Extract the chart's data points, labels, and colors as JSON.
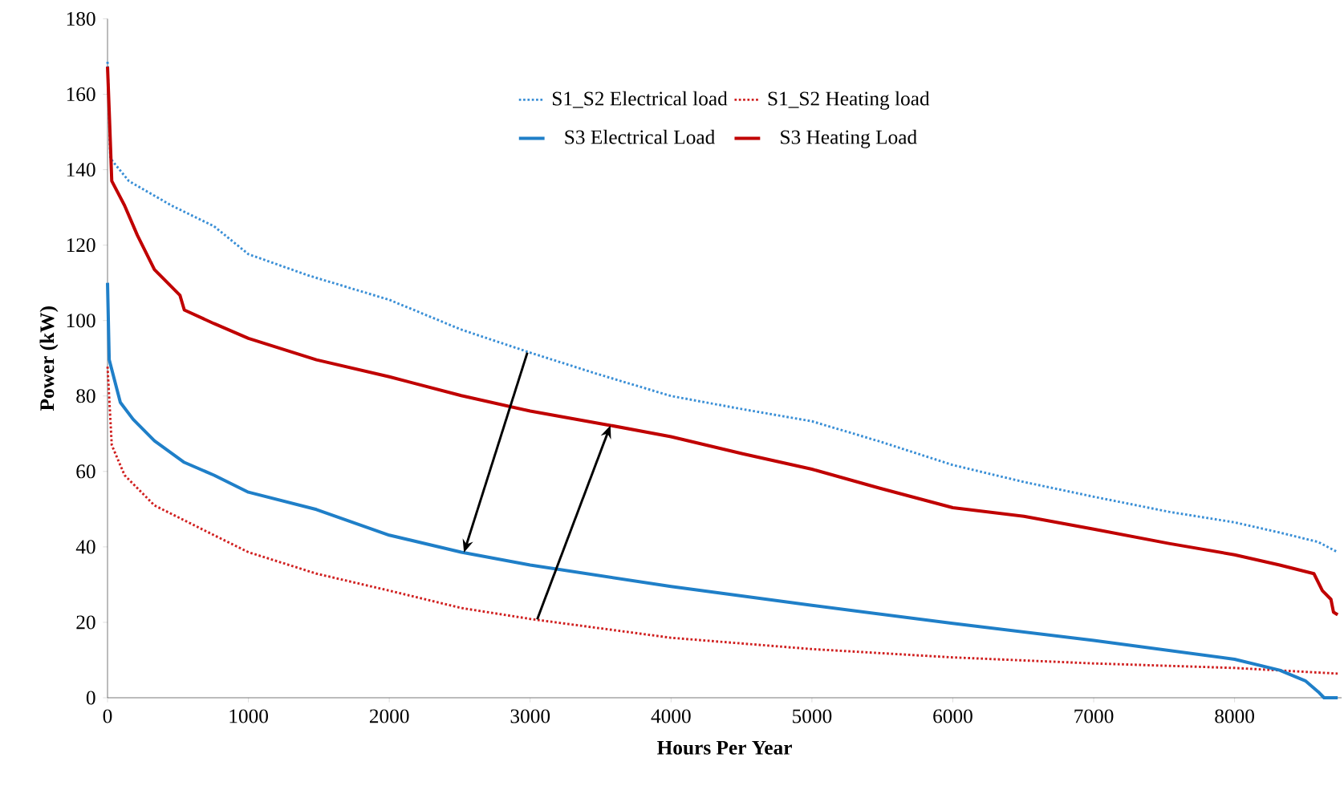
{
  "chart_data": {
    "type": "line",
    "xlabel": "Hours Per Year",
    "ylabel": "Power (kW)",
    "xlim": [
      0,
      8760
    ],
    "ylim": [
      0,
      180
    ],
    "xticks": [
      0,
      1000,
      2000,
      3000,
      4000,
      5000,
      6000,
      7000,
      8000
    ],
    "yticks": [
      0,
      20,
      40,
      60,
      80,
      100,
      120,
      140,
      160,
      180
    ],
    "grid": false,
    "legend": "top",
    "marker": "none",
    "series": [
      {
        "name": "S1_S2 Electrical load",
        "color": "#3a8fd6",
        "line_style": "dotted",
        "x": [
          0,
          20,
          151,
          454,
          756,
          1000,
          1422,
          2000,
          2511,
          3000,
          3480,
          4000,
          4508,
          5000,
          5477,
          6000,
          6505,
          7000,
          7534,
          8000,
          8320,
          8593,
          8732
        ],
        "values": [
          168.6,
          143,
          137,
          130.5,
          125,
          117.6,
          112,
          105.5,
          97.6,
          91.5,
          85.8,
          80,
          76.5,
          73.3,
          68,
          61.7,
          57.2,
          53.3,
          49.3,
          46.5,
          43.8,
          41.3,
          38.6
        ]
      },
      {
        "name": "S1_S2 Heating load",
        "color": "#d02020",
        "line_style": "dotted",
        "x": [
          0,
          30,
          121,
          333,
          756,
          1000,
          1483,
          2000,
          2511,
          3000,
          4000,
          5000,
          6000,
          7000,
          8000,
          8732
        ],
        "values": [
          87.8,
          67,
          59,
          51,
          43.1,
          38.6,
          32.9,
          28.4,
          23.8,
          20.9,
          15.9,
          12.9,
          10.7,
          9.1,
          7.9,
          6.4
        ]
      },
      {
        "name": "S3 Electrical Load",
        "color": "#1f7fc8",
        "line_style": "solid",
        "x": [
          0,
          12,
          91,
          182,
          333,
          545,
          756,
          1000,
          1483,
          2000,
          2511,
          3000,
          4000,
          5000,
          6000,
          7000,
          8000,
          8320,
          8502,
          8593,
          8635,
          8732
        ],
        "values": [
          110,
          89.6,
          78.3,
          73.8,
          68.1,
          62.4,
          59,
          54.5,
          49.9,
          43.1,
          38.6,
          35.2,
          29.5,
          24.5,
          19.7,
          15.2,
          10.2,
          7.3,
          4.5,
          1.6,
          0,
          0
        ]
      },
      {
        "name": "S3 Heating Load",
        "color": "#c00000",
        "line_style": "solid",
        "x": [
          0,
          12,
          30,
          121,
          212,
          333,
          514,
          545,
          756,
          1000,
          1483,
          2000,
          2511,
          3000,
          3570,
          4000,
          4508,
          5000,
          5477,
          6000,
          6505,
          7000,
          7534,
          8000,
          8320,
          8563,
          8623,
          8684,
          8702,
          8732
        ],
        "values": [
          167.3,
          155.5,
          137,
          130.5,
          122.6,
          113.5,
          106.7,
          102.8,
          99.2,
          95.3,
          89.6,
          85.1,
          80.1,
          76,
          72.2,
          69.2,
          64.7,
          60.6,
          55.6,
          50.4,
          48.1,
          44.7,
          40.9,
          37.9,
          35.2,
          32.9,
          28.4,
          26.1,
          22.7,
          22
        ]
      }
    ]
  }
}
